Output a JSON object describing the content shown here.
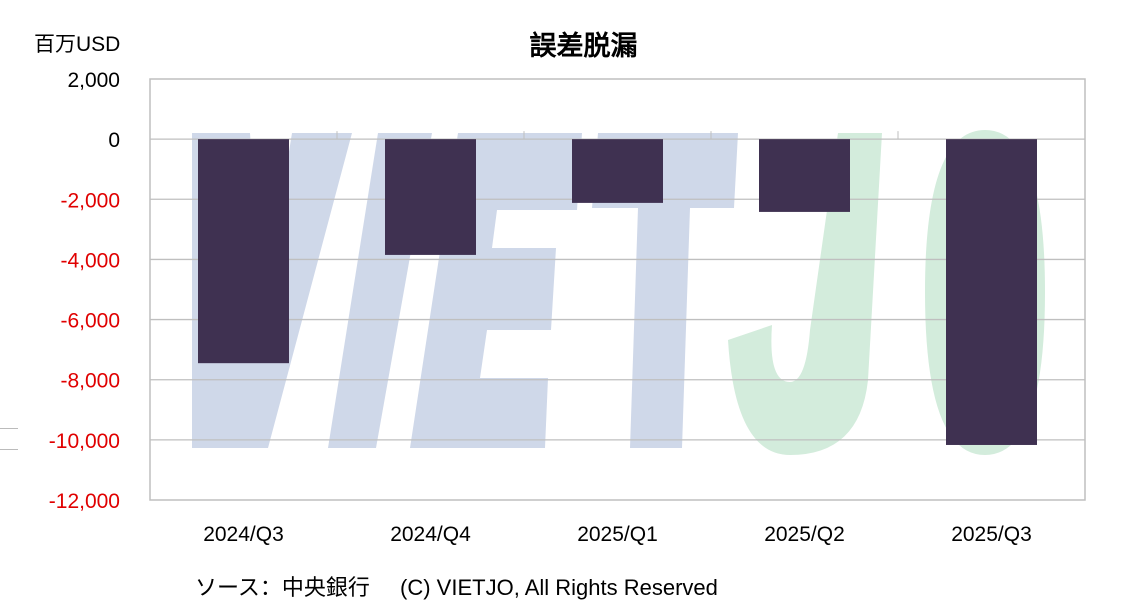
{
  "chart_data": {
    "type": "bar",
    "title": "誤差脱漏",
    "ylabel": "百万USD",
    "xlabel": "",
    "categories": [
      "2024/Q3",
      "2024/Q4",
      "2025/Q1",
      "2025/Q2",
      "2025/Q3"
    ],
    "values": [
      -7450,
      -3850,
      -2120,
      -2420,
      -10170
    ],
    "ylim": [
      -12000,
      2000
    ],
    "yticks": [
      2000,
      0,
      -2000,
      -4000,
      -6000,
      -8000,
      -10000,
      -12000
    ],
    "ytick_labels": [
      "2,000",
      "0",
      "-2,000",
      "-4,000",
      "-6,000",
      "-8,000",
      "-10,000",
      "-12,000"
    ],
    "grid": true,
    "legend": "none",
    "colors": {
      "bar": "#3f3151",
      "negative_tick": "#e00000",
      "positive_tick": "#000000",
      "grid": "#bfbfbf"
    }
  },
  "watermark": {
    "text_left": "VIET",
    "text_right": "JO",
    "color_left": "#cfd8e9",
    "color_right": "#d3ecdc"
  },
  "footer": {
    "source": "ソース：中央銀行",
    "copyright": "(C) VIETJO, All Rights Reserved"
  }
}
